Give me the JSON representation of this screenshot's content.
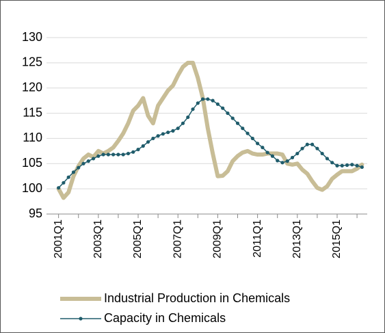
{
  "chart_data": {
    "type": "line",
    "categories": [
      "2001Q1",
      null,
      null,
      null,
      null,
      null,
      null,
      null,
      "2003Q1",
      null,
      null,
      null,
      null,
      null,
      null,
      null,
      "2005Q1",
      null,
      null,
      null,
      null,
      null,
      null,
      null,
      "2007Q1",
      null,
      null,
      null,
      null,
      null,
      null,
      null,
      "2009Q1",
      null,
      null,
      null,
      null,
      null,
      null,
      null,
      "2011Q1",
      null,
      null,
      null,
      null,
      null,
      null,
      null,
      "2013Q1",
      null,
      null,
      null,
      null,
      null,
      null,
      null,
      "2015Q1",
      null,
      null,
      null,
      null,
      null
    ],
    "series": [
      {
        "name": "Industrial Production in Chemicals",
        "color": "#c8bd96",
        "values": [
          100,
          98.2,
          99.3,
          102.5,
          104.5,
          106,
          106.8,
          106.3,
          107.5,
          107,
          107.5,
          108.2,
          109.5,
          111,
          113,
          115.5,
          116.5,
          118,
          114.5,
          113,
          116.5,
          118,
          119.5,
          120.5,
          122.5,
          124.2,
          125,
          125,
          122,
          118,
          112,
          107,
          102.5,
          102.6,
          103.5,
          105.5,
          106.5,
          107.2,
          107.5,
          107,
          106.8,
          106.8,
          107,
          107,
          107,
          106.8,
          105,
          104.8,
          105,
          103.8,
          103,
          101.5,
          100.2,
          99.8,
          100.5,
          102,
          102.8,
          103.5,
          103.5,
          103.5,
          104,
          104.8
        ]
      },
      {
        "name": "Capacity in Chemicals",
        "color": "#1f5c6b",
        "values": [
          100.2,
          101.2,
          102.3,
          103.3,
          104.2,
          105,
          105.5,
          106,
          106.5,
          106.8,
          106.8,
          106.8,
          106.8,
          106.8,
          107,
          107.3,
          107.8,
          108.5,
          109.3,
          110,
          110.5,
          110.9,
          111.2,
          111.5,
          112,
          113,
          114.2,
          115.8,
          117,
          117.8,
          117.8,
          117.5,
          116.8,
          116,
          115,
          114,
          113,
          112,
          111,
          110,
          109,
          108.2,
          107.2,
          106.5,
          105.6,
          105.2,
          105.5,
          106.2,
          107,
          108,
          108.8,
          108.8,
          108,
          107,
          106,
          105.2,
          104.6,
          104.6,
          104.7,
          104.8,
          104.6,
          104.3
        ]
      }
    ],
    "ylim": [
      95,
      130
    ],
    "yticks": [
      95,
      100,
      105,
      110,
      115,
      120,
      125,
      130
    ],
    "grid": true
  }
}
